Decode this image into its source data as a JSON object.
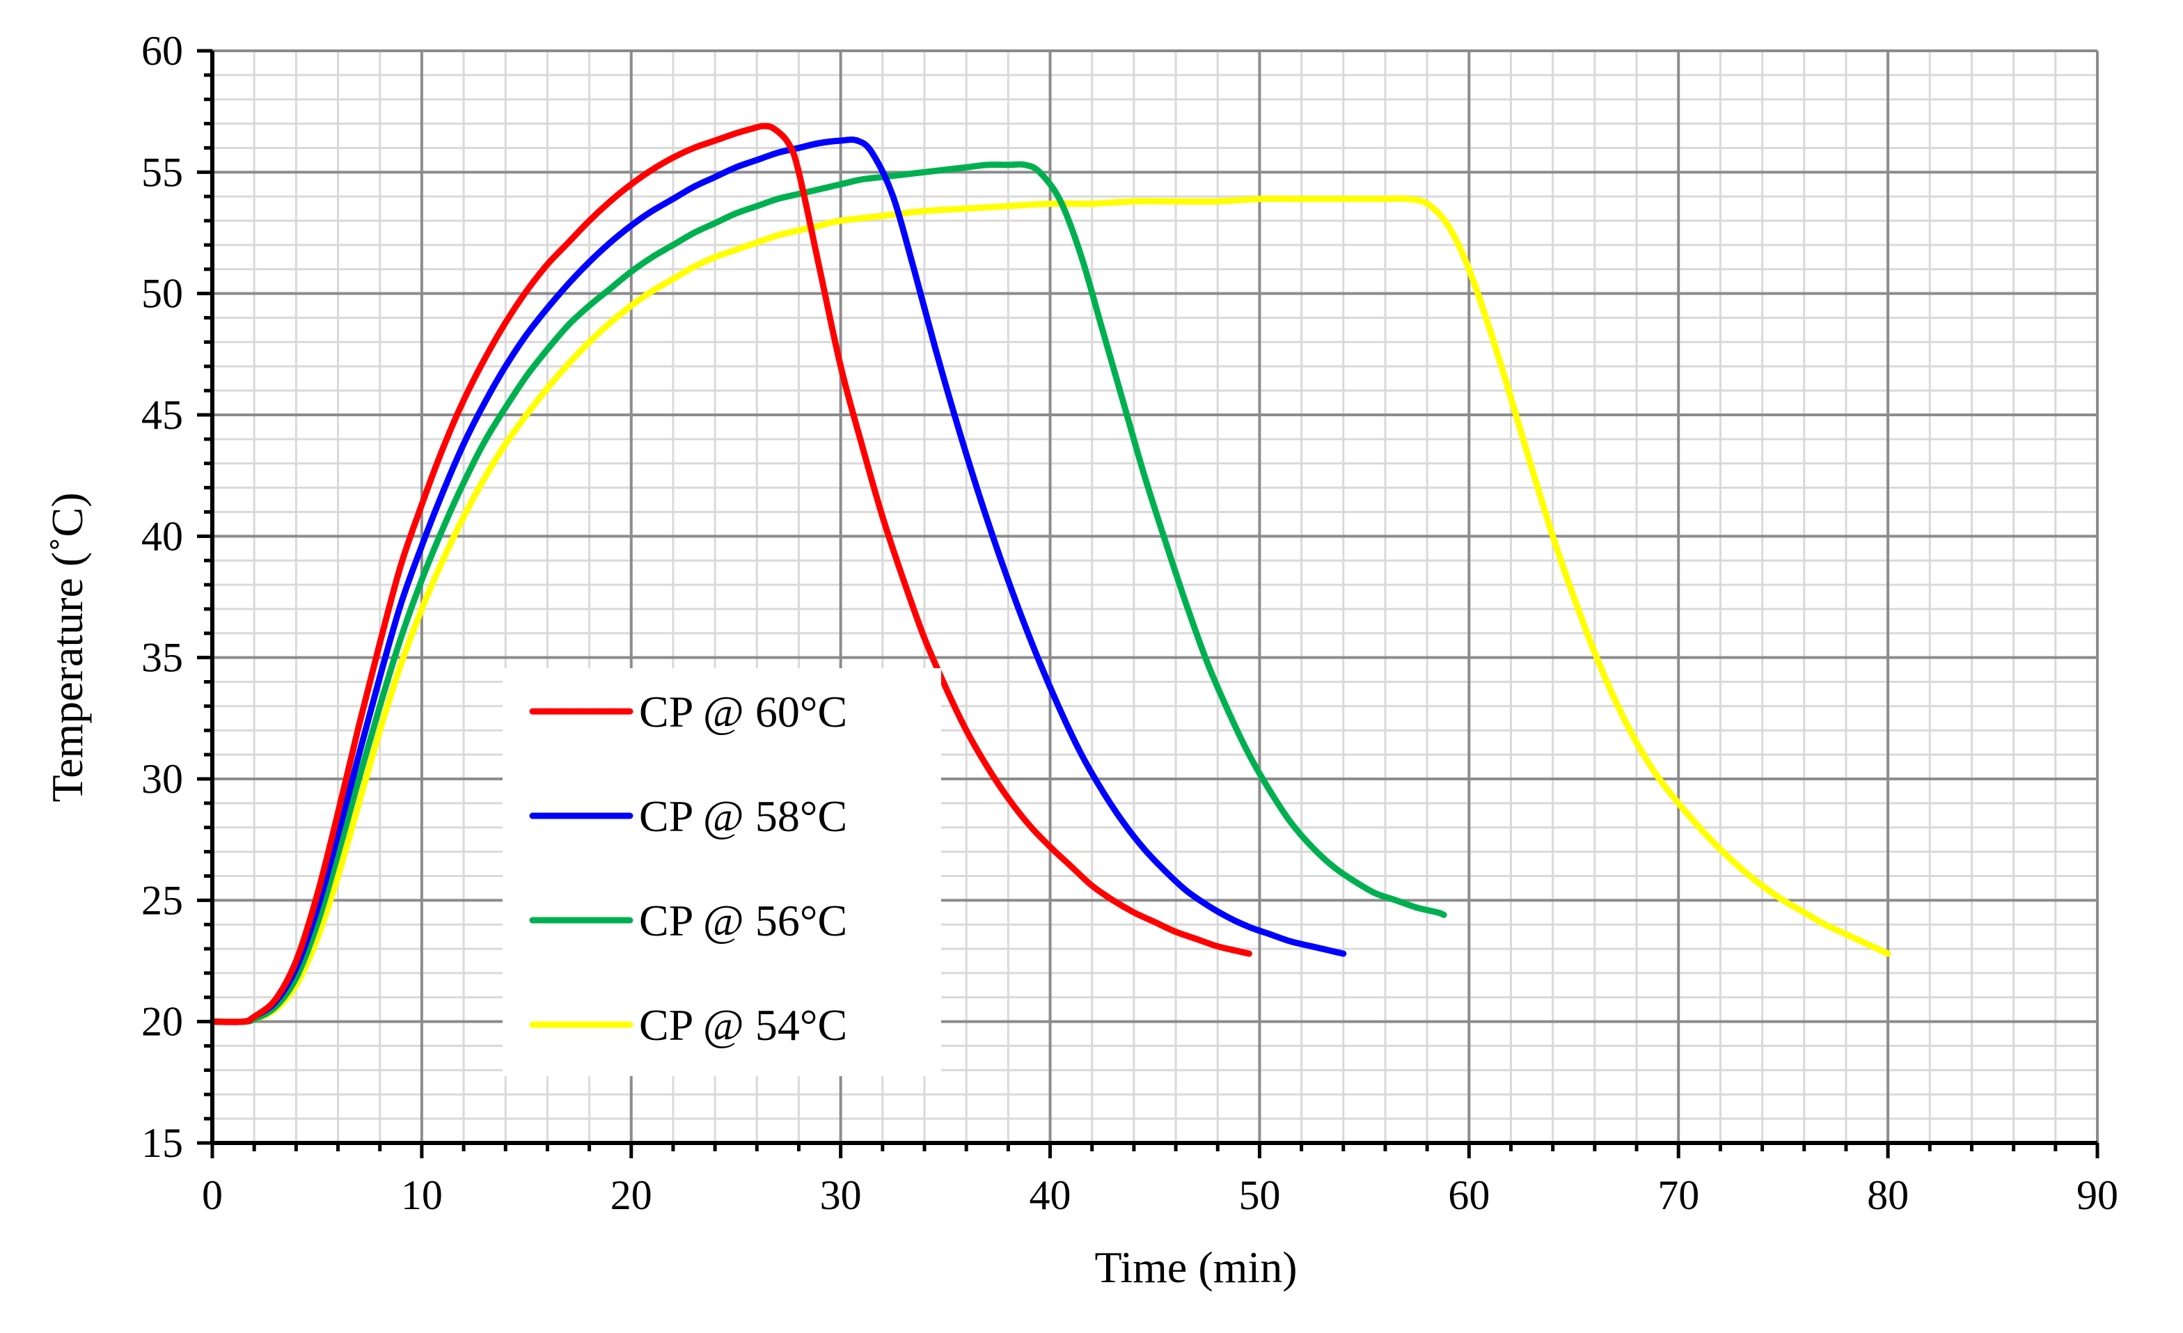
{
  "chart_data": {
    "type": "line",
    "title": "",
    "xlabel": "Time (min)",
    "ylabel": "Temperature (˚C)",
    "xlim": [
      0,
      90
    ],
    "ylim": [
      15,
      60
    ],
    "x_major_step": 10,
    "y_major_step": 5,
    "x_minor_step": 2,
    "y_minor_step": 1,
    "grid": true,
    "legend_position": "lower-left-center",
    "x_ticks": [
      "0",
      "10",
      "20",
      "30",
      "40",
      "50",
      "60",
      "70",
      "80",
      "90"
    ],
    "y_ticks": [
      "15",
      "20",
      "25",
      "30",
      "35",
      "40",
      "45",
      "50",
      "55",
      "60"
    ],
    "series": [
      {
        "name": "CP @ 60°C",
        "color": "#ff0000",
        "x": [
          0,
          1.5,
          2,
          3,
          4,
          5,
          6,
          7,
          8,
          9,
          10,
          11,
          12,
          13,
          14,
          15,
          16,
          17,
          18,
          19,
          20,
          21,
          22,
          23,
          24,
          25,
          25.8,
          26.3,
          26.8,
          27.5,
          28,
          29,
          30,
          31,
          32,
          33,
          34,
          35,
          36,
          37,
          38,
          39,
          40,
          41,
          42,
          43,
          44,
          45,
          46,
          47,
          48,
          49,
          49.5
        ],
        "y": [
          20,
          20,
          20.2,
          20.9,
          22.5,
          25.2,
          28.6,
          32.2,
          35.6,
          38.8,
          41.3,
          43.6,
          45.6,
          47.3,
          48.8,
          50.1,
          51.2,
          52.1,
          53.0,
          53.8,
          54.5,
          55.1,
          55.6,
          56.0,
          56.3,
          56.6,
          56.8,
          56.9,
          56.8,
          56.2,
          55.0,
          51.0,
          47.0,
          43.8,
          40.8,
          38.2,
          35.8,
          33.8,
          32.0,
          30.5,
          29.2,
          28.1,
          27.2,
          26.4,
          25.6,
          25.0,
          24.5,
          24.1,
          23.7,
          23.4,
          23.1,
          22.9,
          22.8
        ]
      },
      {
        "name": "CP @ 58°C",
        "color": "#0000ff",
        "x": [
          0,
          1.5,
          2,
          3,
          4,
          5,
          6,
          7,
          8,
          9,
          10,
          11,
          12,
          13,
          14,
          15,
          16,
          17,
          18,
          19,
          20,
          21,
          22,
          23,
          24,
          25,
          26,
          27,
          28,
          29,
          30,
          30.8,
          31.5,
          32.5,
          33.5,
          34.5,
          35.5,
          36.5,
          37.5,
          38.5,
          39.5,
          40.5,
          41.5,
          42.5,
          43.5,
          44.5,
          45.5,
          46.5,
          47.5,
          48.5,
          49.5,
          50.5,
          51.5,
          52.5,
          53.5,
          54
        ],
        "y": [
          20,
          20,
          20.2,
          20.8,
          22.2,
          24.6,
          27.7,
          31.0,
          34.2,
          37.2,
          39.6,
          41.8,
          43.8,
          45.5,
          47.0,
          48.3,
          49.4,
          50.4,
          51.3,
          52.1,
          52.8,
          53.4,
          53.9,
          54.4,
          54.8,
          55.2,
          55.5,
          55.8,
          56.0,
          56.2,
          56.3,
          56.3,
          55.8,
          54.0,
          51.0,
          47.8,
          44.8,
          42.0,
          39.4,
          37.0,
          34.8,
          32.8,
          31.0,
          29.5,
          28.2,
          27.1,
          26.2,
          25.4,
          24.8,
          24.3,
          23.9,
          23.6,
          23.3,
          23.1,
          22.9,
          22.8
        ]
      },
      {
        "name": "CP @ 56°C",
        "color": "#00b050",
        "x": [
          0,
          1.5,
          2,
          3,
          4,
          5,
          6,
          7,
          8,
          9,
          10,
          11,
          12,
          13,
          14,
          15,
          16,
          17,
          18,
          19,
          20,
          21,
          22,
          23,
          24,
          25,
          26,
          27,
          28,
          29,
          30,
          31,
          32,
          33,
          34,
          35,
          36,
          37,
          38,
          38.8,
          39.5,
          40.5,
          41.5,
          42.5,
          43.5,
          44.5,
          45.5,
          46.5,
          47.5,
          48.5,
          49.5,
          50.5,
          51.5,
          52.5,
          53.5,
          54.5,
          55.5,
          56.5,
          57.5,
          58.5,
          58.8
        ],
        "y": [
          20,
          20,
          20.1,
          20.6,
          21.8,
          24.0,
          26.9,
          30.0,
          33.0,
          35.8,
          38.2,
          40.3,
          42.2,
          43.9,
          45.3,
          46.6,
          47.7,
          48.7,
          49.5,
          50.2,
          50.9,
          51.5,
          52.0,
          52.5,
          52.9,
          53.3,
          53.6,
          53.9,
          54.1,
          54.3,
          54.5,
          54.7,
          54.8,
          54.9,
          55.0,
          55.1,
          55.2,
          55.3,
          55.3,
          55.3,
          55.0,
          53.8,
          51.5,
          48.5,
          45.5,
          42.5,
          39.8,
          37.2,
          34.8,
          32.8,
          31.0,
          29.5,
          28.2,
          27.2,
          26.4,
          25.8,
          25.3,
          25.0,
          24.7,
          24.5,
          24.4
        ]
      },
      {
        "name": "CP @ 54°C",
        "color": "#ffff00",
        "x": [
          0,
          1.5,
          2,
          3,
          4,
          5,
          6,
          7,
          8,
          9,
          10,
          11,
          12,
          13,
          14,
          15,
          16,
          17,
          18,
          19,
          20,
          21,
          22,
          23,
          24,
          25,
          26,
          27,
          28,
          29,
          30,
          32,
          34,
          36,
          38,
          40,
          42,
          44,
          46,
          48,
          50,
          52,
          54,
          56,
          57,
          58,
          59,
          60,
          61,
          62,
          63,
          64,
          65,
          66,
          67,
          68,
          69,
          70,
          71,
          72,
          73,
          74,
          75,
          76,
          77,
          78,
          79,
          80
        ],
        "y": [
          20,
          20,
          20.1,
          20.5,
          21.5,
          23.4,
          26.0,
          29.0,
          32.0,
          34.7,
          37.0,
          39.0,
          40.8,
          42.4,
          43.8,
          45.0,
          46.1,
          47.1,
          48.0,
          48.8,
          49.5,
          50.1,
          50.6,
          51.1,
          51.5,
          51.8,
          52.1,
          52.4,
          52.6,
          52.8,
          53.0,
          53.2,
          53.4,
          53.5,
          53.6,
          53.7,
          53.7,
          53.8,
          53.8,
          53.8,
          53.9,
          53.9,
          53.9,
          53.9,
          53.9,
          53.7,
          52.8,
          51.0,
          48.5,
          45.7,
          42.8,
          40.0,
          37.5,
          35.2,
          33.2,
          31.5,
          30.1,
          29.0,
          28.0,
          27.1,
          26.3,
          25.6,
          25.0,
          24.5,
          24.0,
          23.6,
          23.2,
          22.8
        ]
      }
    ]
  }
}
